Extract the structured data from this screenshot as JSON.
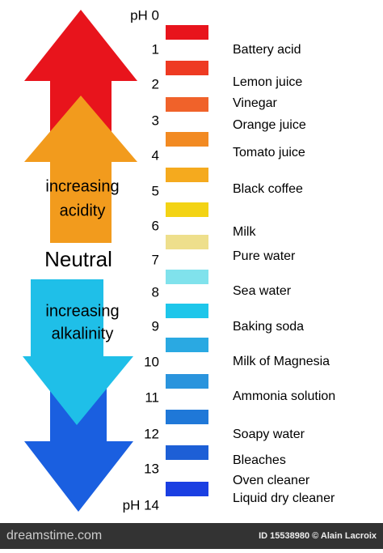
{
  "scale": {
    "labels": [
      "pH 0",
      "1",
      "2",
      "3",
      "4",
      "5",
      "6",
      "7",
      "8",
      "9",
      "10",
      "11",
      "12",
      "13",
      "pH 14"
    ],
    "swatches": [
      "#e8141c",
      "#ee3a22",
      "#f0622a",
      "#f28a22",
      "#f5aa1e",
      "#f3d314",
      "#eedf8c",
      "#80e2ec",
      "#1ec6ea",
      "#2aa9e2",
      "#2a94dd",
      "#1f78d8",
      "#1d5fd6",
      "#1a3fe2"
    ]
  },
  "substances": [
    "Battery acid",
    "Lemon juice",
    "Vinegar",
    "Orange juice",
    "Tomato juice",
    "Black coffee",
    "Milk",
    "Pure water",
    "Sea water",
    "Baking soda",
    "Milk of Magnesia",
    "Ammonia solution",
    "Soapy water",
    "Bleaches",
    "Oven cleaner",
    "Liquid dry cleaner"
  ],
  "arrows": {
    "acid": [
      "increasing",
      "acidity"
    ],
    "neutral": "Neutral",
    "alkaline": [
      "increasing",
      "alkalinity"
    ]
  },
  "footer": {
    "site": "dreamstime.com",
    "credit": "ID 15538980 © Alain Lacroix"
  }
}
